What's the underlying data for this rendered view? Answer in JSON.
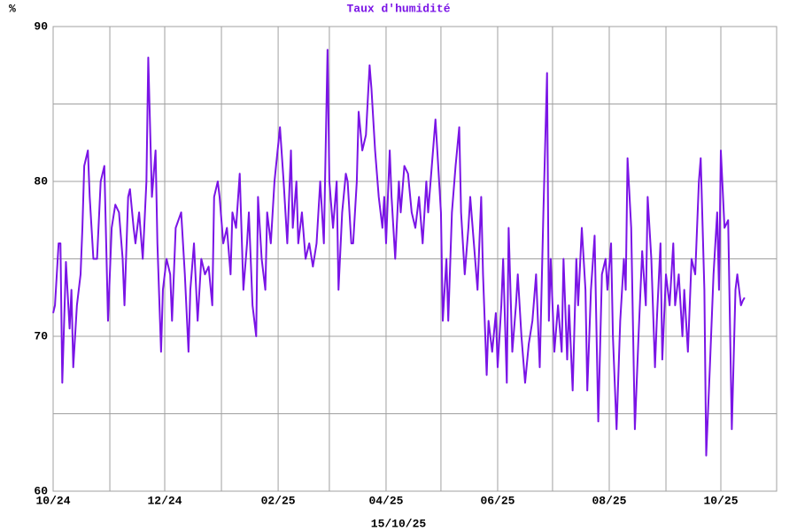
{
  "chart_data": {
    "type": "line",
    "title": "Taux d'humidité",
    "y_label": "%",
    "footer": "15/10/25",
    "color": "#7a14e6",
    "grid": true,
    "xlim": [
      0,
      395.5
    ],
    "ylim": [
      60,
      90
    ],
    "xticks": [
      {
        "value": 0,
        "label": "10/24"
      },
      {
        "value": 61,
        "label": "12/24"
      },
      {
        "value": 123,
        "label": "02/25"
      },
      {
        "value": 182,
        "label": "04/25"
      },
      {
        "value": 243,
        "label": "06/25"
      },
      {
        "value": 304,
        "label": "08/25"
      },
      {
        "value": 365,
        "label": "10/25"
      }
    ],
    "xminor": [
      31,
      92,
      151,
      212,
      273,
      335
    ],
    "yticks": [
      60,
      70,
      80,
      90
    ],
    "yminor": [
      65,
      75,
      85
    ],
    "x": [
      0,
      1,
      3,
      4,
      5,
      7,
      9,
      10,
      11,
      13,
      15,
      16,
      17,
      19,
      20,
      22,
      24,
      26,
      28,
      29,
      30,
      32,
      34,
      36,
      38,
      39,
      41,
      42,
      44,
      45,
      47,
      49,
      51,
      52,
      54,
      56,
      57,
      59,
      60,
      62,
      64,
      65,
      67,
      70,
      72,
      74,
      75,
      77,
      79,
      81,
      83,
      85,
      87,
      88,
      90,
      91,
      93,
      95,
      97,
      98,
      100,
      102,
      104,
      106,
      107,
      109,
      111,
      112,
      114,
      116,
      117,
      119,
      121,
      124,
      126,
      128,
      130,
      131,
      133,
      134,
      136,
      138,
      140,
      142,
      144,
      146,
      148,
      150,
      151,
      153,
      155,
      156,
      158,
      160,
      161,
      163,
      164,
      166,
      167,
      169,
      171,
      173,
      174,
      176,
      178,
      180,
      181,
      182,
      184,
      185,
      187,
      189,
      190,
      192,
      194,
      196,
      198,
      200,
      202,
      204,
      205,
      207,
      209,
      210,
      212,
      213,
      215,
      216,
      218,
      220,
      222,
      223,
      225,
      227,
      228,
      230,
      232,
      234,
      235,
      237,
      238,
      240,
      242,
      243,
      245,
      246,
      248,
      249,
      251,
      253,
      254,
      256,
      258,
      260,
      262,
      264,
      266,
      268,
      270,
      271,
      272,
      274,
      276,
      278,
      279,
      281,
      282,
      284,
      286,
      287,
      289,
      291,
      292,
      294,
      296,
      298,
      300,
      302,
      303,
      305,
      306,
      308,
      310,
      312,
      313,
      314,
      316,
      318,
      320,
      322,
      324,
      325,
      327,
      329,
      330,
      332,
      333,
      335,
      337,
      339,
      340,
      342,
      344,
      345,
      347,
      349,
      351,
      353,
      354,
      356,
      357,
      359,
      361,
      363,
      364,
      365,
      367,
      369,
      371,
      373,
      374,
      376,
      377,
      378
    ],
    "values": [
      71.5,
      72,
      76,
      76,
      67,
      74.8,
      70.5,
      73,
      68,
      72,
      74,
      77,
      81,
      82,
      79,
      75,
      75,
      80,
      81,
      76,
      71,
      77,
      78.5,
      78,
      75,
      72,
      79,
      79.5,
      77,
      76,
      78,
      75,
      80,
      88,
      79,
      82,
      76,
      69,
      73,
      75,
      74,
      71,
      77,
      78,
      74,
      69,
      73,
      76,
      71,
      75,
      74,
      74.5,
      72,
      79,
      80,
      79,
      76,
      77,
      74,
      78,
      77,
      80.5,
      73,
      76,
      78,
      72,
      70,
      79,
      75,
      73,
      78,
      76,
      80,
      83.5,
      80,
      76,
      82,
      77,
      80,
      76,
      78,
      75,
      76,
      74.5,
      76,
      80,
      76,
      88.5,
      80,
      77,
      80,
      73,
      78,
      80.5,
      80,
      76,
      76,
      80,
      84.5,
      82,
      83,
      87.5,
      86,
      82,
      79,
      77,
      79,
      76,
      82,
      79,
      75,
      80,
      78,
      81,
      80.5,
      78,
      77,
      79,
      76,
      80,
      78,
      81,
      84,
      82,
      78,
      71,
      75,
      71,
      78,
      81,
      83.5,
      78,
      74,
      77,
      79,
      76,
      73,
      79,
      74,
      67.5,
      71,
      69,
      71.5,
      68,
      72,
      75,
      67,
      77,
      69,
      72,
      74,
      70,
      67,
      69.5,
      71,
      74,
      68,
      78,
      87,
      71,
      75,
      69,
      72,
      69,
      75,
      68.5,
      72,
      66.5,
      75,
      72,
      77,
      73,
      66.5,
      73,
      76.5,
      64.5,
      74,
      75,
      73,
      76,
      70,
      64,
      71,
      75,
      73,
      81.5,
      77,
      64,
      70,
      75.5,
      72,
      79,
      75,
      68,
      71,
      76,
      68.5,
      74,
      72,
      76,
      72,
      74,
      70,
      73,
      69,
      75,
      74,
      80,
      81.5,
      73,
      62.3,
      68,
      74,
      78,
      73,
      82,
      77,
      77.5,
      64,
      73,
      74,
      72,
      72.3,
      72.5
    ]
  }
}
